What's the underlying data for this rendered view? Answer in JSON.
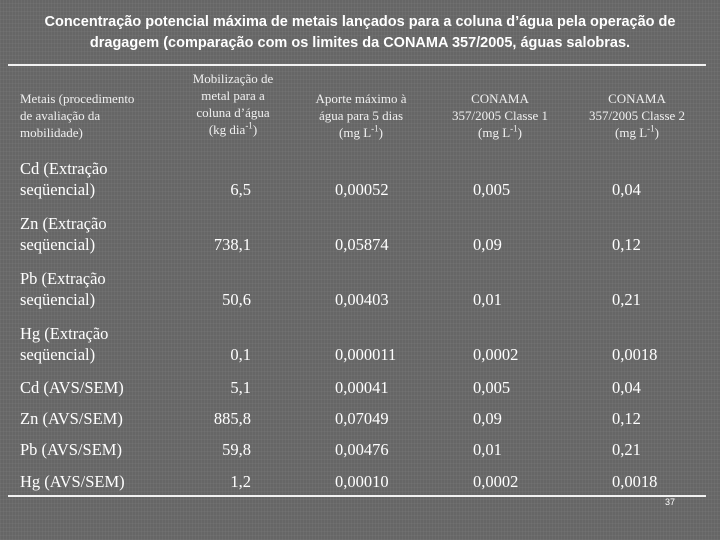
{
  "title_line1": "Concentração potencial máxima de metais lançados para a coluna d’água pela operação de",
  "title_line2": "dragagem (comparação com os limites da CONAMA 357/2005, águas salobras.",
  "headers": {
    "metal_l1": "Metais (procedimento",
    "metal_l2": "de avaliação da",
    "metal_l3": "mobilidade)",
    "mob_l1": "Mobilização de",
    "mob_l2": "metal para a",
    "mob_l3": "coluna d’água",
    "mob_l4a": "(kg dia",
    "mob_l4sup": "-1",
    "mob_l4b": ")",
    "ap_l1": "Aporte máximo à",
    "ap_l2": "água para 5 dias",
    "ap_l3a": "(mg L",
    "ap_l3sup": "-1",
    "ap_l3b": ")",
    "c1_l1": "CONAMA",
    "c1_l2": "357/2005 Classe 1",
    "c1_l3a": "(mg L",
    "c1_l3sup": "-1",
    "c1_l3b": ")",
    "c2_l1": "CONAMA",
    "c2_l2": "357/2005 Classe 2",
    "c2_l3a": "(mg L",
    "c2_l3sup": "-1",
    "c2_l3b": ")"
  },
  "rows": [
    {
      "metal_l1": "Cd (Extração",
      "metal_l2": "seqüencial)",
      "mob": "6,5",
      "aporte": "0,00052",
      "classe1": "0,005",
      "classe2": "0,04"
    },
    {
      "metal_l1": "Zn (Extração",
      "metal_l2": "seqüencial)",
      "mob": "738,1",
      "aporte": "0,05874",
      "classe1": "0,09",
      "classe2": "0,12"
    },
    {
      "metal_l1": "Pb (Extração",
      "metal_l2": "seqüencial)",
      "mob": "50,6",
      "aporte": "0,00403",
      "classe1": "0,01",
      "classe2": "0,21"
    },
    {
      "metal_l1": "Hg (Extração",
      "metal_l2": "seqüencial)",
      "mob": "0,1",
      "aporte": "0,000011",
      "classe1": "0,0002",
      "classe2": "0,0018"
    },
    {
      "metal_l1": "Cd (AVS/SEM)",
      "metal_l2": "",
      "mob": "5,1",
      "aporte": "0,00041",
      "classe1": "0,005",
      "classe2": "0,04"
    },
    {
      "metal_l1": "Zn (AVS/SEM)",
      "metal_l2": "",
      "mob": "885,8",
      "aporte": "0,07049",
      "classe1": "0,09",
      "classe2": "0,12"
    },
    {
      "metal_l1": "Pb (AVS/SEM)",
      "metal_l2": "",
      "mob": "59,8",
      "aporte": "0,00476",
      "classe1": "0,01",
      "classe2": "0,21"
    },
    {
      "metal_l1": "Hg (AVS/SEM)",
      "metal_l2": "",
      "mob": "1,2",
      "aporte": "0,00010",
      "classe1": "0,0002",
      "classe2": "0,0018"
    }
  ],
  "page_number": "37"
}
